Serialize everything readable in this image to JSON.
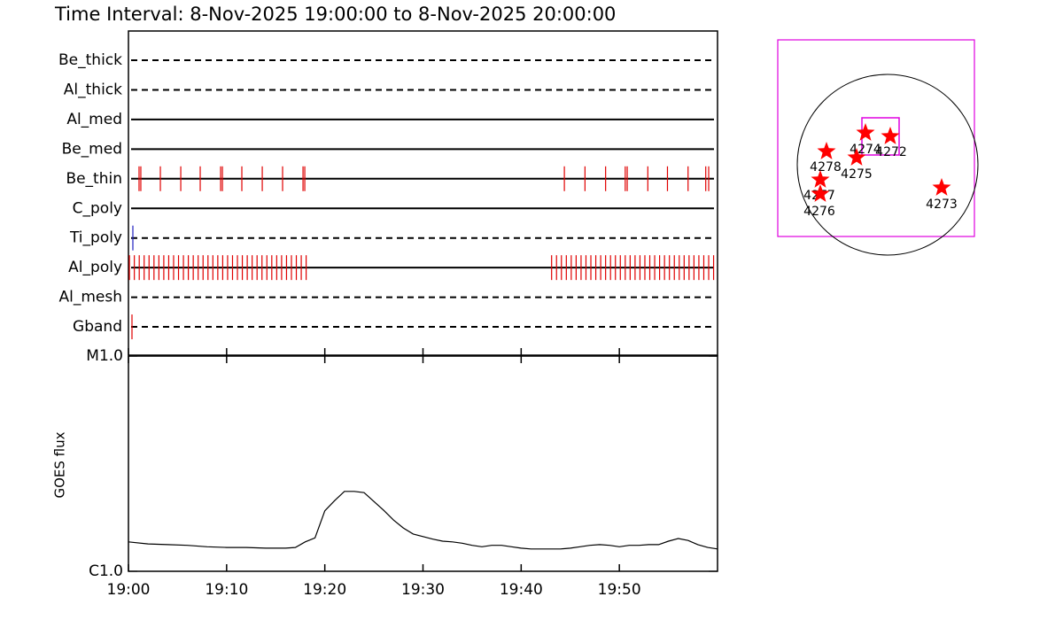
{
  "chart_data": [
    {
      "type": "timeline",
      "title": "Time Interval:  8-Nov-2025 19:00:00 to  8-Nov-2025 20:00:00",
      "xlim": [
        0,
        60
      ],
      "series": [
        {
          "name": "Be_thick",
          "line": "dashed",
          "color": "#e00000",
          "events": []
        },
        {
          "name": "Al_thick",
          "line": "dashed",
          "color": "#e00000",
          "events": []
        },
        {
          "name": "Al_med",
          "line": "solid",
          "color": "#e00000",
          "events": []
        },
        {
          "name": "Be_med",
          "line": "solid",
          "color": "#e00000",
          "events": []
        },
        {
          "name": "Be_thin",
          "line": "solid",
          "color": "#e00000",
          "events": [
            1.08,
            1.26,
            3.25,
            5.33,
            7.31,
            9.39,
            9.57,
            11.55,
            13.63,
            15.7,
            17.78,
            17.96,
            44.4,
            46.5,
            48.6,
            50.6,
            50.8,
            52.9,
            54.9,
            57.0,
            58.8,
            59.1
          ]
        },
        {
          "name": "C_poly",
          "line": "solid",
          "color": "#e00000",
          "events": []
        },
        {
          "name": "Ti_poly",
          "line": "dashed",
          "color": "#2020c0",
          "events": [
            0.45
          ]
        },
        {
          "name": "Al_poly",
          "line": "solid",
          "color": "#e00000",
          "events": [
            0.1,
            0.6,
            1.1,
            1.6,
            2.1,
            2.6,
            3.1,
            3.6,
            4.1,
            4.6,
            5.1,
            5.6,
            6.1,
            6.6,
            7.1,
            7.6,
            8.1,
            8.6,
            9.1,
            9.6,
            10.1,
            10.6,
            11.1,
            11.6,
            12.1,
            12.6,
            13.1,
            13.6,
            14.1,
            14.6,
            15.1,
            15.6,
            16.1,
            16.6,
            17.1,
            17.6,
            18.1,
            43.1,
            43.6,
            44.1,
            44.6,
            45.1,
            45.6,
            46.1,
            46.6,
            47.1,
            47.6,
            48.1,
            48.6,
            49.1,
            49.6,
            50.1,
            50.6,
            51.1,
            51.6,
            52.1,
            52.6,
            53.1,
            53.6,
            54.1,
            54.6,
            55.1,
            55.6,
            56.1,
            56.6,
            57.1,
            57.6,
            58.1,
            58.6,
            59.1,
            59.6
          ]
        },
        {
          "name": "Al_mesh",
          "line": "dashed",
          "color": "#e00000",
          "events": []
        },
        {
          "name": "Gband",
          "line": "dashed",
          "color": "#e00000",
          "events": [
            0.36
          ]
        }
      ]
    },
    {
      "type": "line",
      "ylabel": "GOES flux",
      "log_y": true,
      "xlim": [
        0,
        60
      ],
      "xticks": [
        {
          "value": 0,
          "label": "19:00"
        },
        {
          "value": 10,
          "label": "19:10"
        },
        {
          "value": 20,
          "label": "19:20"
        },
        {
          "value": 30,
          "label": "19:30"
        },
        {
          "value": 40,
          "label": "19:40"
        },
        {
          "value": 50,
          "label": "19:50"
        }
      ],
      "ylim": [
        1e-06,
        1e-05
      ],
      "yticks": [
        {
          "value": 1e-06,
          "label": "C1.0"
        },
        {
          "value": 1e-05,
          "label": "M1.0"
        }
      ],
      "color": "#000000",
      "x": [
        0,
        2,
        4,
        6,
        8,
        10,
        12,
        14,
        16,
        17,
        18,
        19,
        20,
        21,
        22,
        23,
        24,
        25,
        26,
        27,
        28,
        29,
        30,
        31,
        32,
        33,
        34,
        35,
        36,
        37,
        38,
        39,
        40,
        41,
        42,
        43,
        44,
        45,
        46,
        47,
        48,
        49,
        50,
        51,
        52,
        53,
        54,
        55,
        56,
        57,
        58,
        59,
        60
      ],
      "values": [
        1.37e-06,
        1.34e-06,
        1.33e-06,
        1.32e-06,
        1.3e-06,
        1.29e-06,
        1.29e-06,
        1.28e-06,
        1.28e-06,
        1.29e-06,
        1.37e-06,
        1.43e-06,
        1.91e-06,
        2.13e-06,
        2.35e-06,
        2.35e-06,
        2.32e-06,
        2.11e-06,
        1.92e-06,
        1.73e-06,
        1.59e-06,
        1.49e-06,
        1.45e-06,
        1.41e-06,
        1.38e-06,
        1.37e-06,
        1.35e-06,
        1.32e-06,
        1.3e-06,
        1.32e-06,
        1.32e-06,
        1.3e-06,
        1.28e-06,
        1.27e-06,
        1.27e-06,
        1.27e-06,
        1.27e-06,
        1.28e-06,
        1.3e-06,
        1.32e-06,
        1.33e-06,
        1.32e-06,
        1.3e-06,
        1.32e-06,
        1.32e-06,
        1.33e-06,
        1.33e-06,
        1.38e-06,
        1.42e-06,
        1.39e-06,
        1.33e-06,
        1.29e-06,
        1.27e-06
      ]
    },
    {
      "type": "map",
      "color": "#ff0000",
      "labels": [
        "4278",
        "4274",
        "4272",
        "4275",
        "4277",
        "4276",
        "4273"
      ]
    }
  ]
}
